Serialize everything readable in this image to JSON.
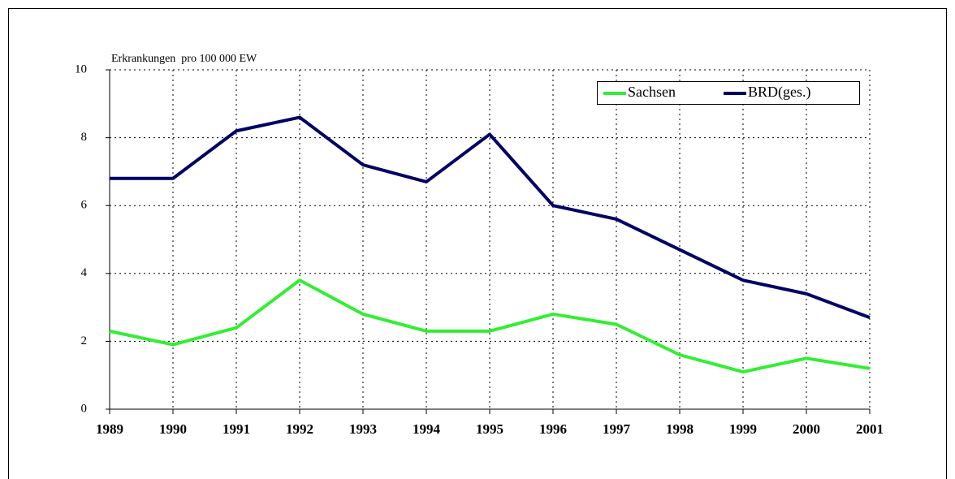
{
  "chart_data": {
    "type": "line",
    "y_label": "Erkrankungen  pro 100 000 EW",
    "x": [
      1989,
      1990,
      1991,
      1992,
      1993,
      1994,
      1995,
      1996,
      1997,
      1998,
      1999,
      2000,
      2001
    ],
    "xlim": [
      1989,
      2001
    ],
    "series": [
      {
        "name": "Sachsen",
        "color": "#33ee33",
        "values": [
          2.3,
          1.9,
          2.4,
          3.8,
          2.8,
          2.3,
          2.3,
          2.8,
          2.5,
          1.6,
          1.1,
          1.5,
          1.2
        ]
      },
      {
        "name": "BRD(ges.)",
        "color": "#000066",
        "values": [
          6.8,
          6.8,
          8.2,
          8.6,
          7.2,
          6.7,
          8.1,
          6.0,
          5.6,
          4.7,
          3.8,
          3.4,
          2.7
        ]
      }
    ],
    "ylim": [
      0,
      10
    ],
    "yticks": [
      0,
      2,
      4,
      6,
      8,
      10
    ],
    "grid": true,
    "legend": "upper right"
  }
}
